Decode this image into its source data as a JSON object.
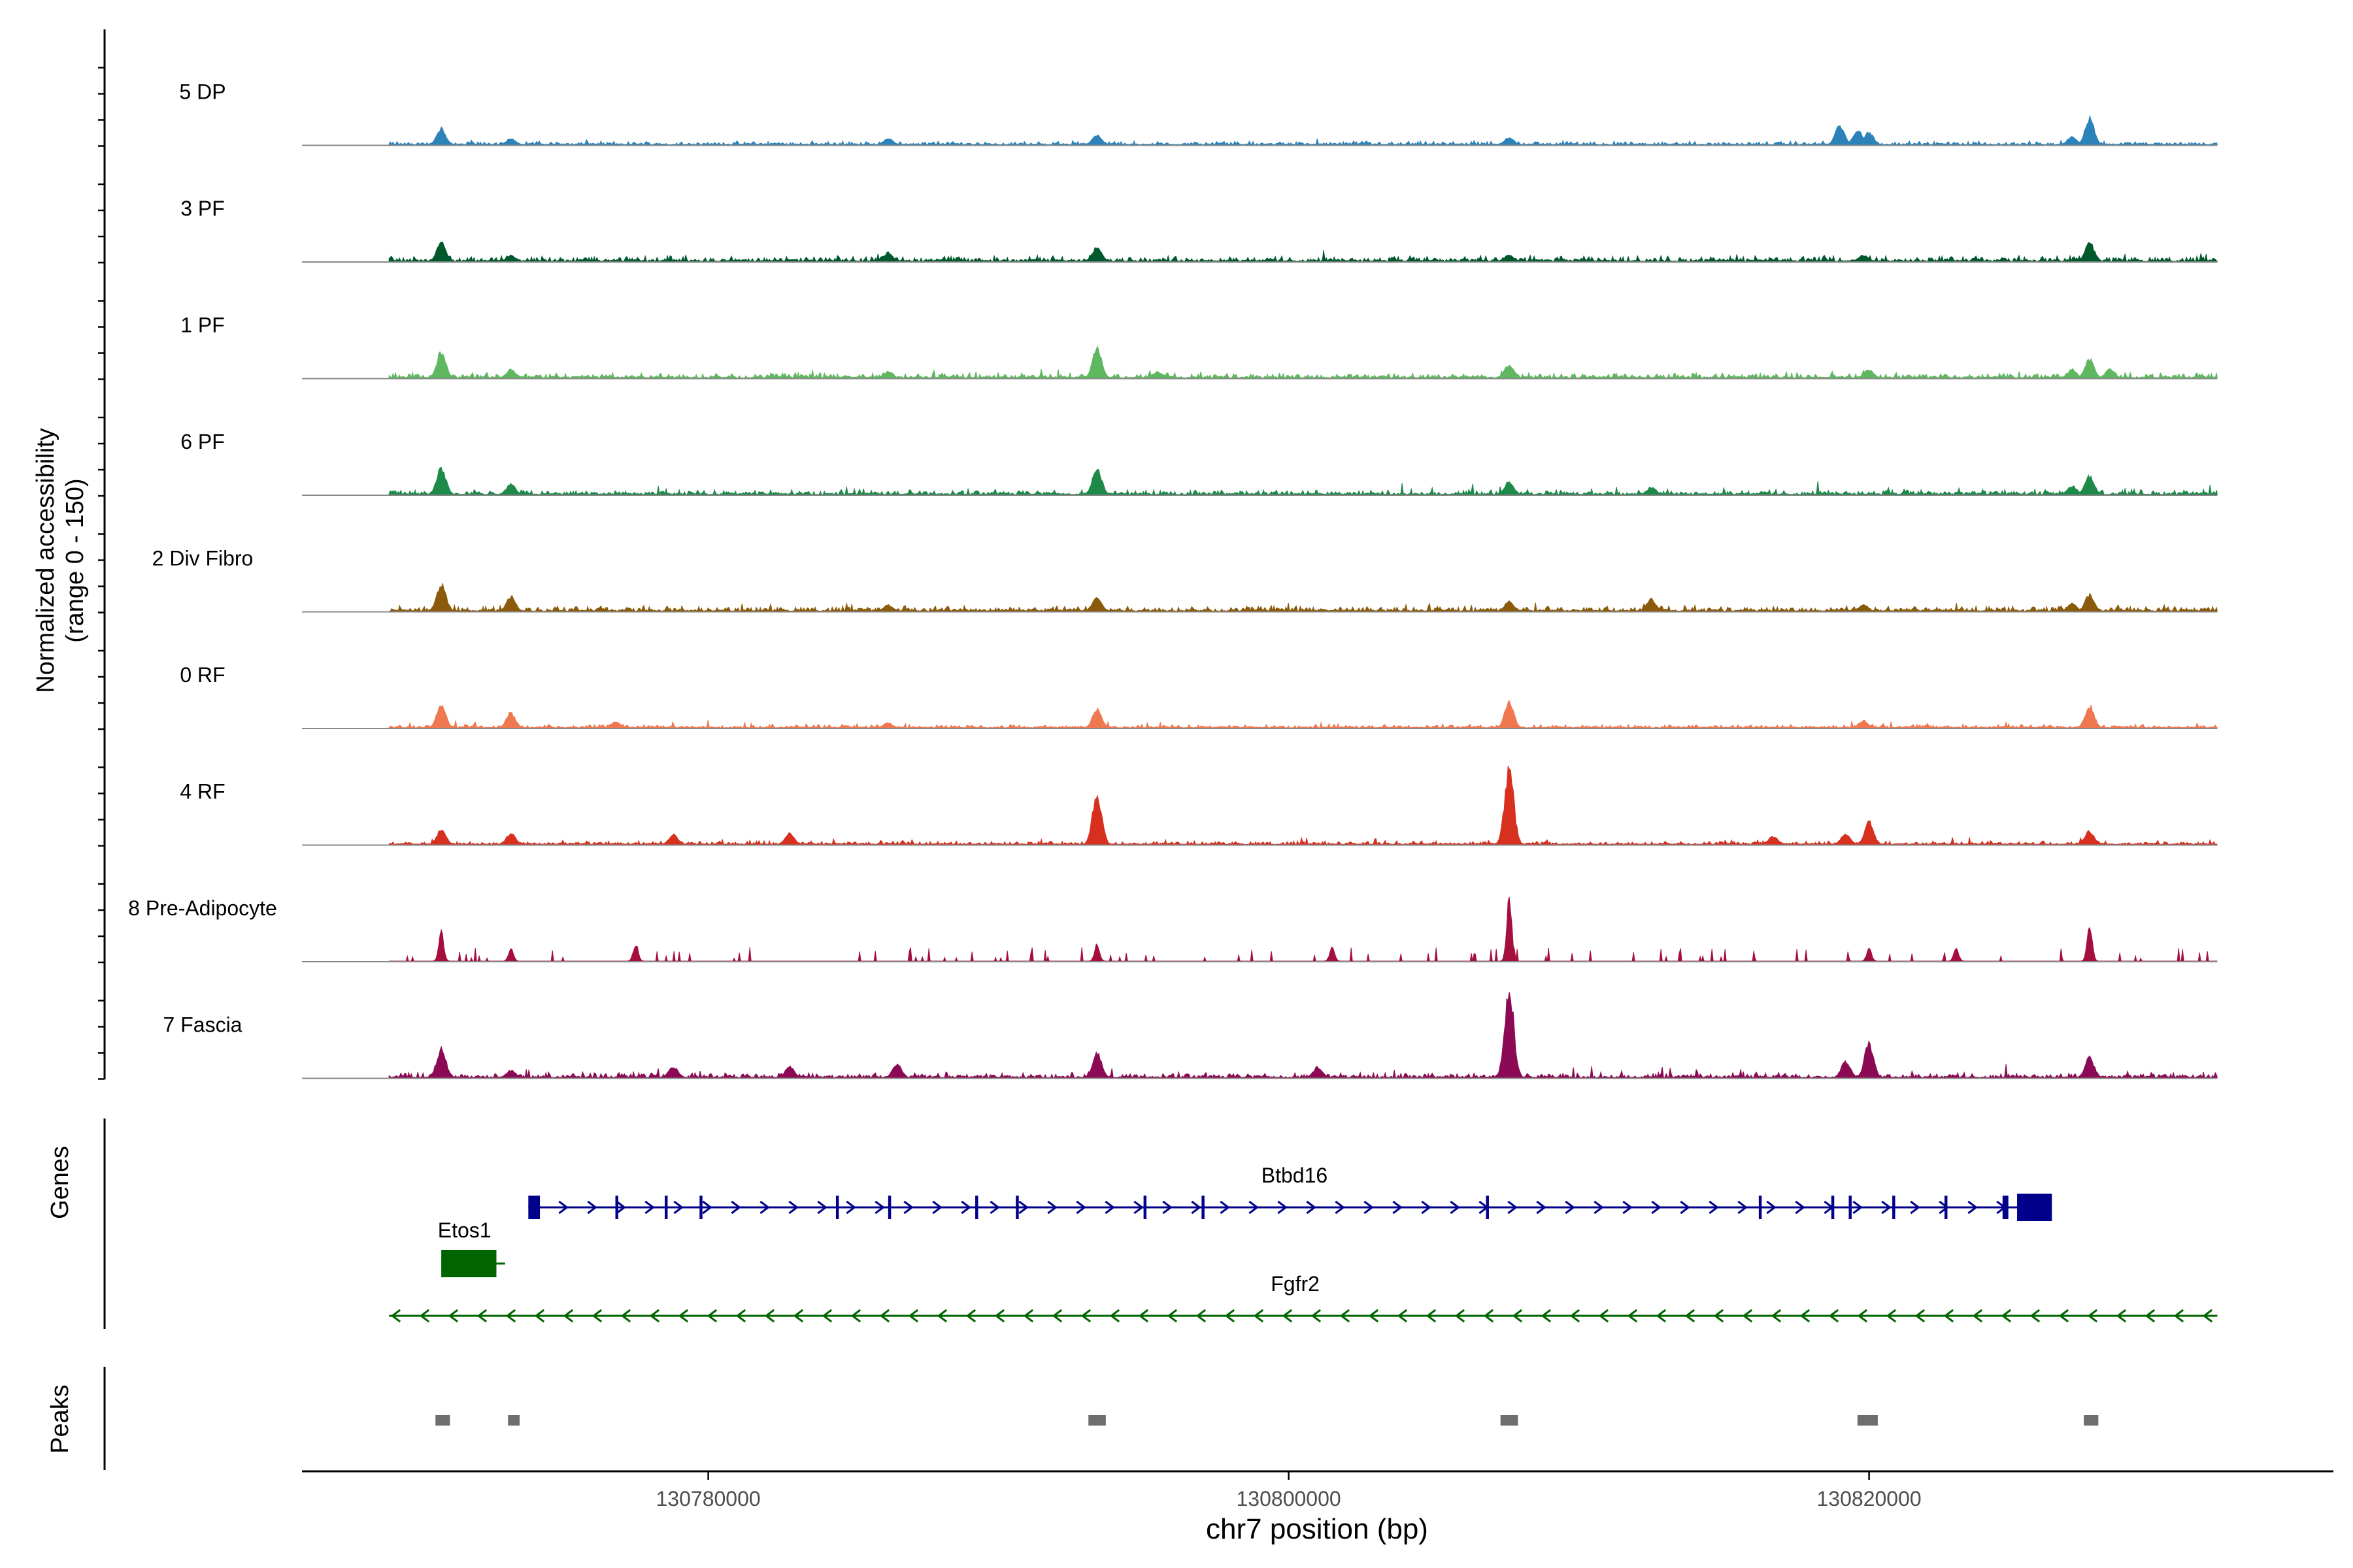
{
  "chart_data": {
    "type": "area",
    "title": "",
    "chromosome": "chr7",
    "xlabel": "chr7 position (bp)",
    "ylabel_line1": "Normalized accessibility",
    "ylabel_line2": "(range 0 - 150)",
    "xlim": [
      130766000,
      130836000
    ],
    "x_ticks": [
      130780000,
      130800000,
      130820000
    ],
    "x_tick_labels": [
      "130780000",
      "130800000",
      "130820000"
    ],
    "track_labels": {
      "genes": "Genes",
      "peaks": "Peaks"
    },
    "data_start": 130769000,
    "data_end": 130832000,
    "series": [
      {
        "name": "5 DP",
        "color": "#2b83ba",
        "bg": 2,
        "noise": 1,
        "peaks": [
          [
            130770800,
            13
          ],
          [
            130773200,
            5
          ],
          [
            130786200,
            5
          ],
          [
            130793400,
            8
          ],
          [
            130807600,
            6
          ],
          [
            130819000,
            16
          ],
          [
            130819600,
            12
          ],
          [
            130820000,
            10
          ],
          [
            130827600,
            22
          ],
          [
            130827000,
            7
          ]
        ]
      },
      {
        "name": "3 PF",
        "color": "#00592c",
        "bg": 3,
        "noise": 2,
        "peaks": [
          [
            130770800,
            15
          ],
          [
            130773200,
            5
          ],
          [
            130786200,
            7
          ],
          [
            130793400,
            12
          ],
          [
            130807600,
            5
          ],
          [
            130819800,
            5
          ],
          [
            130827600,
            15
          ]
        ]
      },
      {
        "name": "1 PF",
        "color": "#5fb85f",
        "bg": 3,
        "noise": 2,
        "peaks": [
          [
            130770800,
            22
          ],
          [
            130773200,
            7
          ],
          [
            130786200,
            5
          ],
          [
            130793400,
            24
          ],
          [
            130795500,
            5
          ],
          [
            130807600,
            11
          ],
          [
            130820000,
            7
          ],
          [
            130827000,
            7
          ],
          [
            130827600,
            15
          ],
          [
            130828300,
            7
          ]
        ]
      },
      {
        "name": "6 PF",
        "color": "#1e8a4a",
        "bg": 3,
        "noise": 3,
        "peaks": [
          [
            130770800,
            22
          ],
          [
            130773200,
            9
          ],
          [
            130793400,
            22
          ],
          [
            130807600,
            11
          ],
          [
            130812500,
            6
          ],
          [
            130827000,
            7
          ],
          [
            130827600,
            15
          ]
        ]
      },
      {
        "name": "2 Div Fibro",
        "color": "#8b5a0a",
        "bg": 3,
        "noise": 2,
        "peaks": [
          [
            130770800,
            22
          ],
          [
            130773200,
            12
          ],
          [
            130786200,
            5
          ],
          [
            130793400,
            12
          ],
          [
            130807600,
            8
          ],
          [
            130812500,
            10
          ],
          [
            130819800,
            5
          ],
          [
            130827000,
            6
          ],
          [
            130827600,
            13
          ]
        ]
      },
      {
        "name": "0 RF",
        "color": "#f07850",
        "bg": 2,
        "noise": 2,
        "peaks": [
          [
            130770800,
            18
          ],
          [
            130773200,
            12
          ],
          [
            130776800,
            5
          ],
          [
            130786200,
            4
          ],
          [
            130793400,
            15
          ],
          [
            130807600,
            20
          ],
          [
            130819800,
            6
          ],
          [
            130827600,
            18
          ]
        ]
      },
      {
        "name": "4 RF",
        "color": "#d7301f",
        "bg": 2,
        "noise": 2,
        "peaks": [
          [
            130770800,
            12
          ],
          [
            130773200,
            9
          ],
          [
            130778800,
            8
          ],
          [
            130782800,
            9
          ],
          [
            130793400,
            42
          ],
          [
            130807600,
            60
          ],
          [
            130816700,
            7
          ],
          [
            130819200,
            9
          ],
          [
            130820000,
            18
          ],
          [
            130827600,
            11
          ]
        ]
      },
      {
        "name": "8 Pre-Adipocyte",
        "color": "#a50f3e",
        "bg": 0,
        "noise": 0,
        "spiky": true,
        "peaks": [
          [
            130770800,
            24
          ],
          [
            130773200,
            10
          ],
          [
            130777500,
            14
          ],
          [
            130793400,
            14
          ],
          [
            130807600,
            56
          ],
          [
            130827600,
            32
          ],
          [
            130820000,
            10
          ],
          [
            130823000,
            10
          ],
          [
            130801500,
            11
          ]
        ]
      },
      {
        "name": "7 Fascia",
        "color": "#8c0a55",
        "bg": 3,
        "noise": 3,
        "peaks": [
          [
            130770800,
            24
          ],
          [
            130773200,
            6
          ],
          [
            130778800,
            9
          ],
          [
            130782800,
            9
          ],
          [
            130786500,
            11
          ],
          [
            130793400,
            20
          ],
          [
            130801000,
            9
          ],
          [
            130807600,
            74
          ],
          [
            130819200,
            14
          ],
          [
            130820000,
            28
          ],
          [
            130827600,
            16
          ]
        ]
      }
    ],
    "genes": [
      {
        "name": "Btbd16",
        "strand": "+",
        "start": 130773800,
        "end": 130826300,
        "color": "#00008b",
        "exons": [
          [
            130773800,
            130774200
          ],
          [
            130776800,
            130776900
          ],
          [
            130778500,
            130778600
          ],
          [
            130779700,
            130779800
          ],
          [
            130784400,
            130784500
          ],
          [
            130786200,
            130786300
          ],
          [
            130789200,
            130789300
          ],
          [
            130790600,
            130790700
          ],
          [
            130795000,
            130795100
          ],
          [
            130797000,
            130797100
          ],
          [
            130806800,
            130806900
          ],
          [
            130816200,
            130816300
          ],
          [
            130818700,
            130818800
          ],
          [
            130819300,
            130819400
          ],
          [
            130820800,
            130820900
          ],
          [
            130822600,
            130822700
          ],
          [
            130824600,
            130824800
          ],
          [
            130825100,
            130826300
          ]
        ]
      },
      {
        "name": "Etos1",
        "strand": "-",
        "start": 130770800,
        "end": 130773000,
        "color": "#006400",
        "exons": [
          [
            130770800,
            130772700
          ]
        ]
      },
      {
        "name": "Fgfr2",
        "strand": "-",
        "start": 130769000,
        "end": 130832000,
        "color": "#006400",
        "exons": []
      }
    ],
    "peaks": [
      [
        130770600,
        130771100
      ],
      [
        130773100,
        130773500
      ],
      [
        130793100,
        130793700
      ],
      [
        130807300,
        130807900
      ],
      [
        130819600,
        130820300
      ],
      [
        130827400,
        130827900
      ]
    ]
  }
}
